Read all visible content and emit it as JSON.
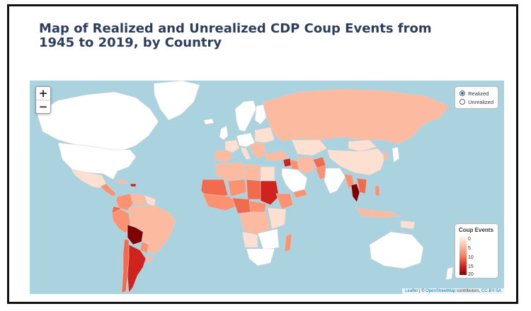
{
  "page": {
    "title": "Map of Realized and Unrealized CDP Coup Events from 1945 to 2019, by Country"
  },
  "zoom": {
    "in_label": "+",
    "out_label": "−"
  },
  "layers": {
    "options": [
      {
        "label": "Realized",
        "selected": true
      },
      {
        "label": "Unrealized",
        "selected": false
      }
    ]
  },
  "legend": {
    "title": "Coup Events",
    "ticks": [
      "0",
      "5",
      "10",
      "15",
      "20"
    ],
    "colors": {
      "low": "#ffffff",
      "high": "#7f0000"
    }
  },
  "attribution": {
    "leaflet": "Leaflet",
    "separator": " | © ",
    "osm": "OpenStreetMap",
    "contributors": " contributors, ",
    "license": "CC-BY-SA"
  },
  "colors": {
    "ocean": "#aad3df",
    "no_data": "#ffffff",
    "c1": "#fee0d2",
    "c2": "#fcbba1",
    "c3": "#fc9272",
    "c4": "#f26b4f",
    "c5": "#d0231e",
    "c6": "#7f0000"
  }
}
